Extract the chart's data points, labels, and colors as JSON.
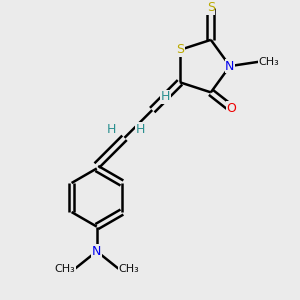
{
  "background_color": "#ebebeb",
  "atom_colors": {
    "C": "#000000",
    "H": "#2a9090",
    "N": "#0000ee",
    "O": "#ee0000",
    "S": "#bbaa00"
  },
  "bond_color": "#000000",
  "bond_width": 1.8,
  "figsize": [
    3.0,
    3.0
  ],
  "dpi": 100,
  "xlim": [
    0,
    10
  ],
  "ylim": [
    0,
    10
  ]
}
